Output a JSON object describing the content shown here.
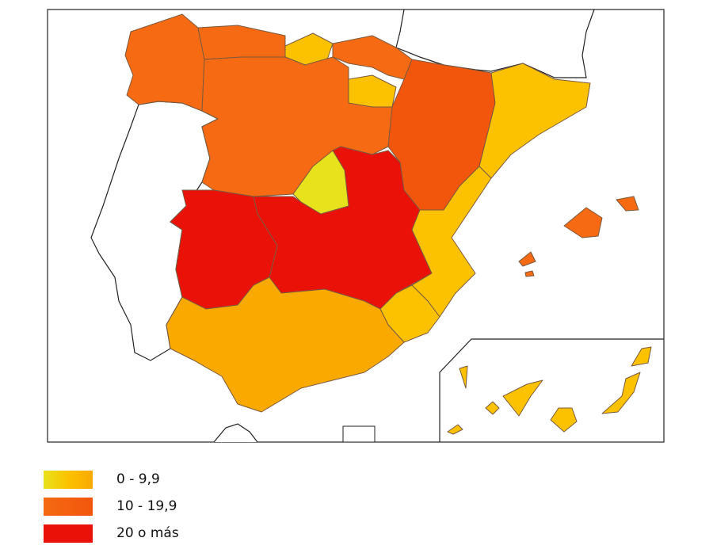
{
  "map": {
    "colors": {
      "low_madrid": "#e8e21c",
      "low": "#fcc200",
      "low_south": "#f9a900",
      "mid": "#f56a12",
      "mid_dark": "#f2560c",
      "high": "#ea1208"
    }
  },
  "legend": {
    "items": [
      {
        "label": "0 - 9,9",
        "color": "#f5c800",
        "gradient": [
          "#e8e21c",
          "#fcc200",
          "#f9a900"
        ]
      },
      {
        "label": "10 - 19,9",
        "color": "#f56a12",
        "gradient": [
          "#f56a12",
          "#f2560c"
        ]
      },
      {
        "label": "20 o más",
        "color": "#ea1208",
        "gradient": [
          "#ea1208",
          "#ea1208"
        ]
      }
    ]
  }
}
